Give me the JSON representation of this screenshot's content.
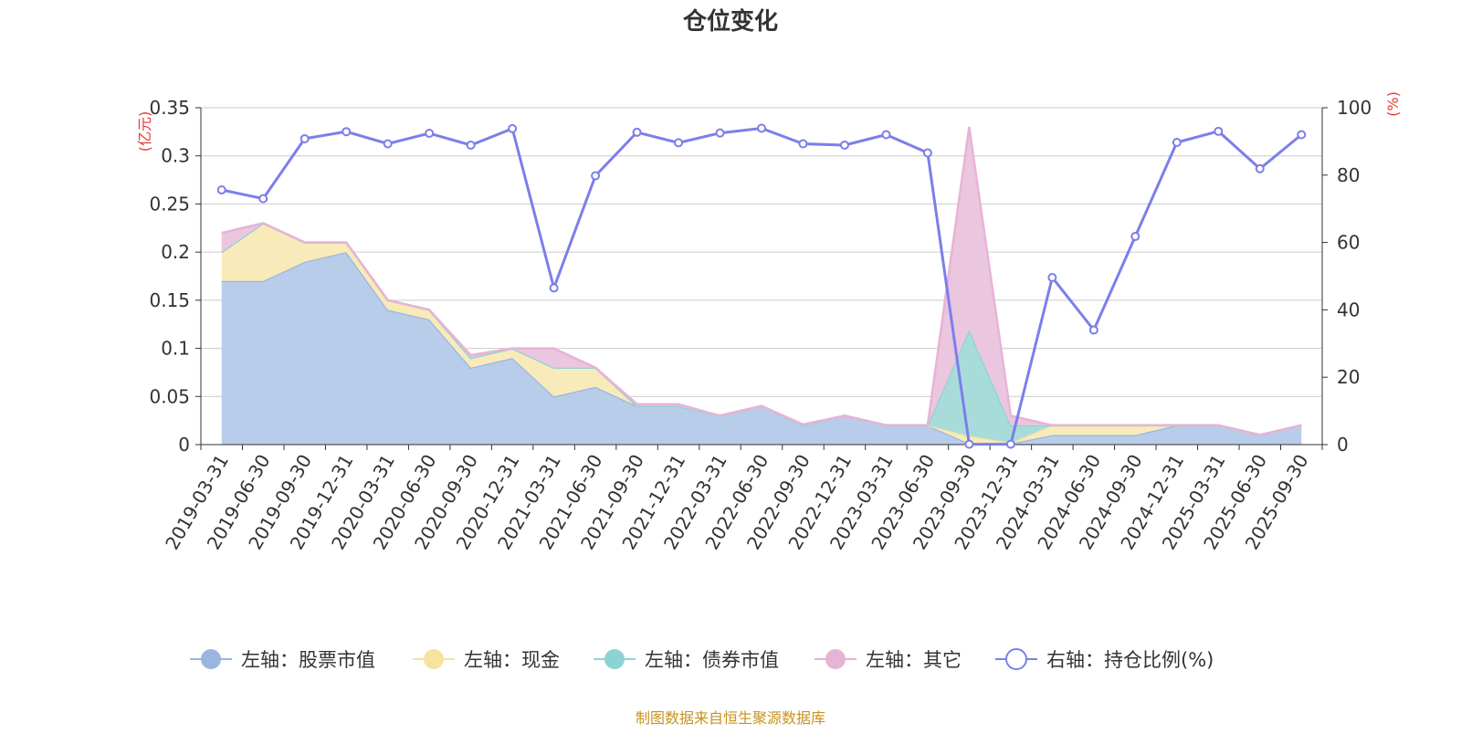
{
  "chart_data": {
    "type": "area",
    "title": "仓位变化",
    "left_axis": {
      "unit": "(亿元)",
      "ylim": [
        0,
        0.35
      ],
      "ticks": [
        0,
        0.05,
        0.1,
        0.15,
        0.2,
        0.25,
        0.3,
        0.35
      ],
      "tick_labels": [
        "0",
        "0.05",
        "0.1",
        "0.15",
        "0.2",
        "0.25",
        "0.3",
        "0.35"
      ]
    },
    "right_axis": {
      "unit": "(%)",
      "ylim": [
        0,
        100
      ],
      "ticks": [
        0,
        20,
        40,
        60,
        80,
        100
      ],
      "tick_labels": [
        "0",
        "20",
        "40",
        "60",
        "80",
        "100"
      ]
    },
    "categories": [
      "2019-03-31",
      "2019-06-30",
      "2019-09-30",
      "2019-12-31",
      "2020-03-31",
      "2020-06-30",
      "2020-09-30",
      "2020-12-31",
      "2021-03-31",
      "2021-06-30",
      "2021-09-30",
      "2021-12-31",
      "2022-03-31",
      "2022-06-30",
      "2022-09-30",
      "2022-12-31",
      "2023-03-31",
      "2023-06-30",
      "2023-09-30",
      "2023-12-31",
      "2024-03-31",
      "2024-06-30",
      "2024-09-30",
      "2024-12-31",
      "2025-03-31",
      "2025-06-30",
      "2025-09-30"
    ],
    "stacked_series": [
      {
        "name": "左轴：股票市值",
        "color": "#9ab6e0",
        "fill": "#b8cdea",
        "values": [
          0.17,
          0.17,
          0.19,
          0.2,
          0.14,
          0.13,
          0.08,
          0.09,
          0.05,
          0.06,
          0.04,
          0.04,
          0.03,
          0.04,
          0.02,
          0.03,
          0.02,
          0.02,
          0.001,
          0.001,
          0.01,
          0.01,
          0.01,
          0.02,
          0.02,
          0.01,
          0.02
        ]
      },
      {
        "name": "左轴：现金",
        "color": "#f5e39e",
        "fill": "#f8ebb9",
        "values": [
          0.03,
          0.06,
          0.02,
          0.01,
          0.01,
          0.01,
          0.01,
          0.01,
          0.03,
          0.02,
          0,
          0,
          0,
          0,
          0,
          0,
          0,
          0,
          0.008,
          0.001,
          0.01,
          0.01,
          0.01,
          0,
          0,
          0,
          0
        ]
      },
      {
        "name": "左轴：债券市值",
        "color": "#8ed3d3",
        "fill": "#a8dcdb",
        "values": [
          0,
          0,
          0,
          0,
          0,
          0,
          0,
          0,
          0,
          0,
          0,
          0,
          0,
          0,
          0,
          0,
          0,
          0,
          0.11,
          0.018,
          0,
          0,
          0,
          0,
          0,
          0,
          0
        ]
      },
      {
        "name": "左轴：其它",
        "color": "#e7b3d6",
        "fill": "#ebc6df",
        "values": [
          0.02,
          0,
          0,
          0,
          0,
          0,
          0.003,
          0,
          0.02,
          0,
          0.002,
          0.002,
          0,
          0,
          0.001,
          0,
          0,
          0,
          0.211,
          0.01,
          0,
          0,
          0,
          0,
          0,
          0,
          0
        ]
      }
    ],
    "line_series": {
      "name": "右轴：持仓比例(%)",
      "color": "#7b7fea",
      "values": [
        75.6,
        73,
        90.8,
        92.9,
        89.3,
        92.4,
        88.9,
        93.8,
        46.5,
        79.8,
        92.7,
        89.6,
        92.5,
        93.9,
        89.3,
        88.9,
        92,
        86.6,
        0.1,
        0.1,
        49.6,
        34,
        61.8,
        89.7,
        93,
        81.9,
        92
      ]
    },
    "legend_position": "bottom"
  },
  "legend": [
    {
      "label": "左轴：股票市值",
      "color": "#9ab6e0",
      "type": "area"
    },
    {
      "label": "左轴：现金",
      "color": "#f5e39e",
      "type": "area"
    },
    {
      "label": "左轴：债券市值",
      "color": "#8ed3d3",
      "type": "area"
    },
    {
      "label": "左轴：其它",
      "color": "#e7b3d6",
      "type": "area"
    },
    {
      "label": "右轴：持仓比例(%)",
      "color": "#7b7fea",
      "type": "line"
    }
  ],
  "source": "制图数据来自恒生聚源数据库",
  "colors": {
    "unit": "#e53935",
    "source": "#c8921c",
    "grid": "#cccccc",
    "axis": "#333333"
  }
}
